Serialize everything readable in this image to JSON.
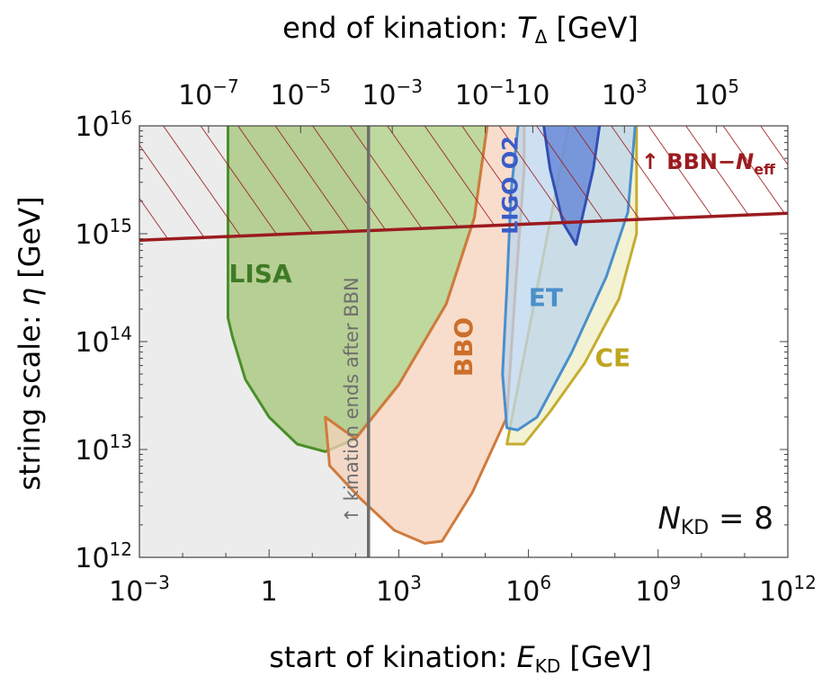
{
  "chart_data": {
    "type": "area",
    "title": "end of kination: T_Δ [GeV]",
    "title_parts": {
      "main": "end of kination: ",
      "var": "T",
      "sub": "Δ",
      "unit": " [GeV]"
    },
    "xlabel": "start of kination: E_KD [GeV]",
    "xlabel_parts": {
      "main": "start of kination: ",
      "var": "E",
      "sub": "KD",
      "unit": " [GeV]"
    },
    "ylabel": "string scale: η [GeV]",
    "ylabel_parts": {
      "main": "string scale: ",
      "var": "η",
      "unit": " [GeV]"
    },
    "x_scale": "log10",
    "y_scale": "log10",
    "xlim_log10": [
      -3,
      12
    ],
    "ylim_log10": [
      12,
      16
    ],
    "x_ticks": [
      {
        "log": -3,
        "base": "10",
        "exp": "−3"
      },
      {
        "log": 0,
        "base": "1",
        "exp": ""
      },
      {
        "log": 3,
        "base": "10",
        "exp": "3"
      },
      {
        "log": 6,
        "base": "10",
        "exp": "6"
      },
      {
        "log": 9,
        "base": "10",
        "exp": "9"
      },
      {
        "log": 12,
        "base": "10",
        "exp": "12"
      }
    ],
    "y_ticks": [
      {
        "log": 12,
        "base": "10",
        "exp": "12"
      },
      {
        "log": 13,
        "base": "10",
        "exp": "13"
      },
      {
        "log": 14,
        "base": "10",
        "exp": "14"
      },
      {
        "log": 15,
        "base": "10",
        "exp": "15"
      },
      {
        "log": 16,
        "base": "10",
        "exp": "16"
      }
    ],
    "top_ticks": [
      {
        "x_log": -1.4,
        "base": "10",
        "exp": "−7"
      },
      {
        "x_log": 0.73,
        "base": "10",
        "exp": "−5"
      },
      {
        "x_log": 2.85,
        "base": "10",
        "exp": "−3"
      },
      {
        "x_log": 5.0,
        "base": "10",
        "exp": "−1"
      },
      {
        "x_log": 6.1,
        "base": "10",
        "exp": ""
      },
      {
        "x_log": 8.22,
        "base": "10",
        "exp": "3"
      },
      {
        "x_log": 10.35,
        "base": "10",
        "exp": "5"
      }
    ],
    "annotation": {
      "text": "N_KD = 8",
      "var": "N",
      "sub": "KD",
      "rest": " = 8"
    },
    "bbn_line": {
      "label": "↑ BBN−N_eff",
      "label_parts": {
        "main": "↑ BBN−",
        "var": "N",
        "sub": "eff"
      },
      "x": [
        -3,
        12
      ],
      "y": [
        14.94,
        15.19
      ],
      "color": "#9b1b1f"
    },
    "bbn_vertical": {
      "label": "↑ kination ends after BBN",
      "x": 2.3,
      "color": "#6e6e6e"
    },
    "series": [
      {
        "name": "LISA",
        "color_fill": "#8ab84c",
        "color_line": "#4a8f2a",
        "color_text": "#3f7a24",
        "points": [
          [
            -0.95,
            16.15
          ],
          [
            -0.95,
            14.22
          ],
          [
            -0.85,
            14.05
          ],
          [
            -0.55,
            13.65
          ],
          [
            0,
            13.3
          ],
          [
            0.65,
            13.05
          ],
          [
            1.3,
            12.98
          ],
          [
            2.0,
            13.1
          ],
          [
            3.0,
            13.6
          ],
          [
            4.1,
            14.35
          ],
          [
            4.75,
            15.15
          ],
          [
            5.1,
            16.15
          ]
        ],
        "label_pos": [
          -0.2,
          14.55
        ]
      },
      {
        "name": "BBO",
        "color_fill": "#f5d2bb",
        "color_line": "#d07a3c",
        "color_text": "#cc6f2a",
        "points": [
          [
            1.3,
            13.3
          ],
          [
            1.4,
            12.85
          ],
          [
            2.1,
            12.55
          ],
          [
            2.9,
            12.25
          ],
          [
            3.6,
            12.13
          ],
          [
            4.0,
            12.15
          ],
          [
            4.7,
            12.6
          ],
          [
            5.5,
            13.3
          ],
          [
            5.7,
            14.5
          ],
          [
            5.9,
            15.6
          ],
          [
            5.9,
            16.15
          ],
          [
            5.1,
            16.15
          ],
          [
            4.75,
            15.15
          ],
          [
            4.1,
            14.35
          ],
          [
            3.0,
            13.6
          ],
          [
            2.0,
            13.1
          ]
        ],
        "label_pos": [
          4.7,
          13.95
        ]
      },
      {
        "name": "CE",
        "color_fill": "#efeec4",
        "color_line": "#c5ad2e",
        "color_text": "#bfa621",
        "points": [
          [
            5.5,
            13.05
          ],
          [
            5.9,
            13.05
          ],
          [
            6.5,
            13.35
          ],
          [
            7.3,
            13.8
          ],
          [
            8.1,
            14.4
          ],
          [
            8.5,
            15.0
          ],
          [
            8.5,
            16.15
          ],
          [
            7.0,
            16.15
          ]
        ],
        "label_pos": [
          7.95,
          13.77
        ]
      },
      {
        "name": "ET",
        "color_fill": "#bcd6ee",
        "color_line": "#4a8fcb",
        "color_text": "#4a8fcb",
        "points": [
          [
            5.8,
            16.15
          ],
          [
            5.6,
            15.4
          ],
          [
            5.5,
            14.5
          ],
          [
            5.4,
            13.7
          ],
          [
            5.5,
            13.2
          ],
          [
            5.75,
            13.18
          ],
          [
            6.2,
            13.3
          ],
          [
            7.0,
            13.9
          ],
          [
            7.8,
            14.6
          ],
          [
            8.3,
            15.2
          ],
          [
            8.5,
            16.15
          ]
        ],
        "label_pos": [
          6.4,
          14.33
        ]
      },
      {
        "name": "LIGO O2",
        "color_fill": "#5c7fd6",
        "color_line": "#3050b4",
        "color_text": "#3a5cc8",
        "points": [
          [
            6.3,
            16.15
          ],
          [
            6.5,
            15.6
          ],
          [
            6.8,
            15.1
          ],
          [
            7.1,
            14.9
          ],
          [
            7.5,
            15.6
          ],
          [
            7.7,
            16.15
          ]
        ],
        "label_pos": [
          5.75,
          15.45
        ]
      }
    ]
  }
}
